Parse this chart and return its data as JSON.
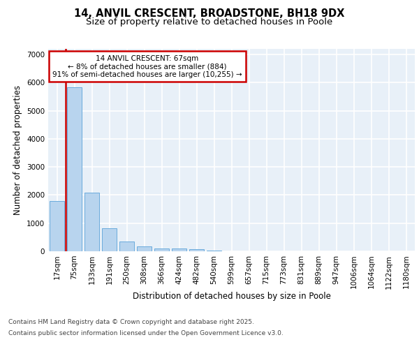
{
  "title_line1": "14, ANVIL CRESCENT, BROADSTONE, BH18 9DX",
  "title_line2": "Size of property relative to detached houses in Poole",
  "xlabel": "Distribution of detached houses by size in Poole",
  "ylabel": "Number of detached properties",
  "categories": [
    "17sqm",
    "75sqm",
    "133sqm",
    "191sqm",
    "250sqm",
    "308sqm",
    "366sqm",
    "424sqm",
    "482sqm",
    "540sqm",
    "599sqm",
    "657sqm",
    "715sqm",
    "773sqm",
    "831sqm",
    "889sqm",
    "947sqm",
    "1006sqm",
    "1064sqm",
    "1122sqm",
    "1180sqm"
  ],
  "values": [
    1780,
    5830,
    2080,
    820,
    340,
    185,
    110,
    90,
    65,
    25,
    0,
    0,
    0,
    0,
    0,
    0,
    0,
    0,
    0,
    0,
    0
  ],
  "bar_color": "#b8d4ee",
  "bar_edge_color": "#6aabdc",
  "vline_color": "#cc0000",
  "annotation_text": "14 ANVIL CRESCENT: 67sqm\n← 8% of detached houses are smaller (884)\n91% of semi-detached houses are larger (10,255) →",
  "annotation_box_color": "#cc0000",
  "ylim": [
    0,
    7200
  ],
  "yticks": [
    0,
    1000,
    2000,
    3000,
    4000,
    5000,
    6000,
    7000
  ],
  "background_color": "#e8f0f8",
  "grid_color": "#ffffff",
  "footer_line1": "Contains HM Land Registry data © Crown copyright and database right 2025.",
  "footer_line2": "Contains public sector information licensed under the Open Government Licence v3.0.",
  "title_fontsize": 10.5,
  "subtitle_fontsize": 9.5,
  "tick_fontsize": 7.5,
  "ylabel_fontsize": 8.5,
  "xlabel_fontsize": 8.5,
  "annotation_fontsize": 7.5,
  "footer_fontsize": 6.5
}
